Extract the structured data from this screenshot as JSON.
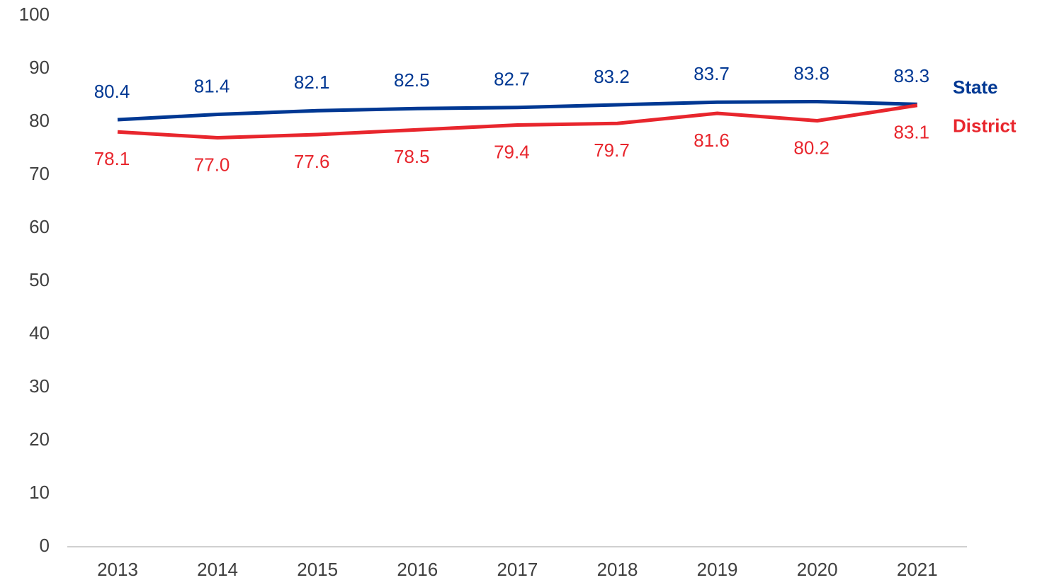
{
  "chart_data": {
    "type": "line",
    "categories": [
      "2013",
      "2014",
      "2015",
      "2016",
      "2017",
      "2018",
      "2019",
      "2020",
      "2021"
    ],
    "series": [
      {
        "name": "State",
        "color": "#003893",
        "values": [
          80.4,
          81.4,
          82.1,
          82.5,
          82.7,
          83.2,
          83.7,
          83.8,
          83.3
        ],
        "value_labels": [
          "80.4",
          "81.4",
          "82.1",
          "82.5",
          "82.7",
          "83.2",
          "83.7",
          "83.8",
          "83.3"
        ]
      },
      {
        "name": "District",
        "color": "#e8262d",
        "values": [
          78.1,
          77.0,
          77.6,
          78.5,
          79.4,
          79.7,
          81.6,
          80.2,
          83.1
        ],
        "value_labels": [
          "78.1",
          "77.0",
          "77.6",
          "78.5",
          "79.4",
          "79.7",
          "81.6",
          "80.2",
          "83.1"
        ]
      }
    ],
    "ylim": [
      0,
      100
    ],
    "yticks": [
      0,
      10,
      20,
      30,
      40,
      50,
      60,
      70,
      80,
      90,
      100
    ],
    "grid": false
  }
}
